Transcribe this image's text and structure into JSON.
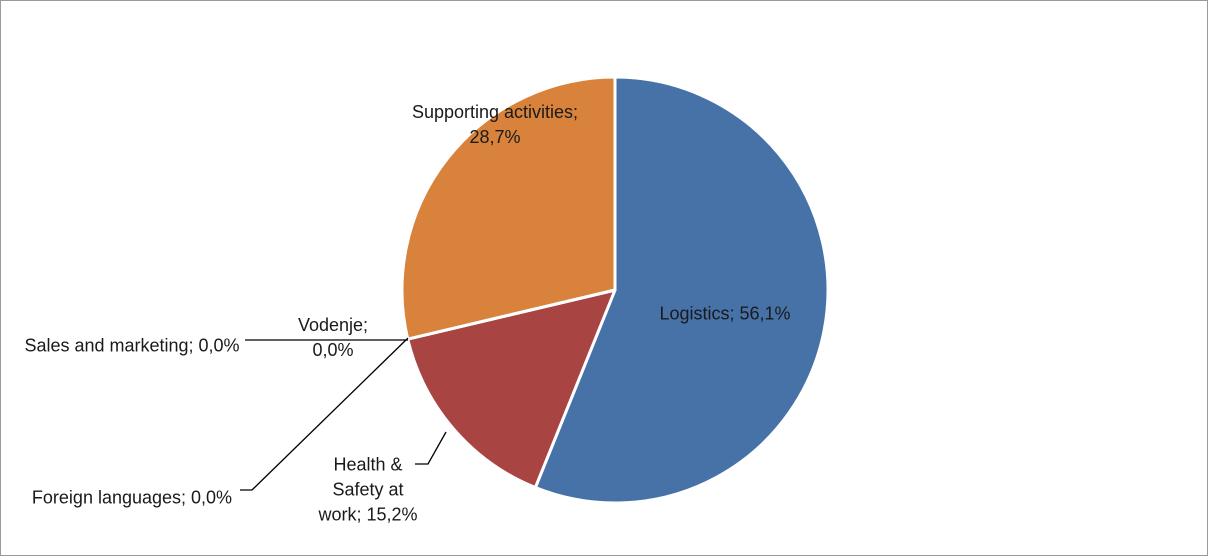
{
  "chart_data": {
    "type": "pie",
    "value_labels": [
      "Logistics; 56,1%",
      "Health & Safety at work; 15,2%",
      "Foreign languages; 0,0%",
      "Sales and marketing; 0,0%",
      "Vodenje; 0,0%",
      "Supporting activities; 28,7%"
    ],
    "values": [
      56.1,
      15.2,
      0.0,
      0.0,
      0.0,
      28.7
    ],
    "colors": [
      "#4672a8",
      "#a84543",
      "#8aa34a",
      "#6e568f",
      "#3f9bb3",
      "#d9823b"
    ]
  }
}
